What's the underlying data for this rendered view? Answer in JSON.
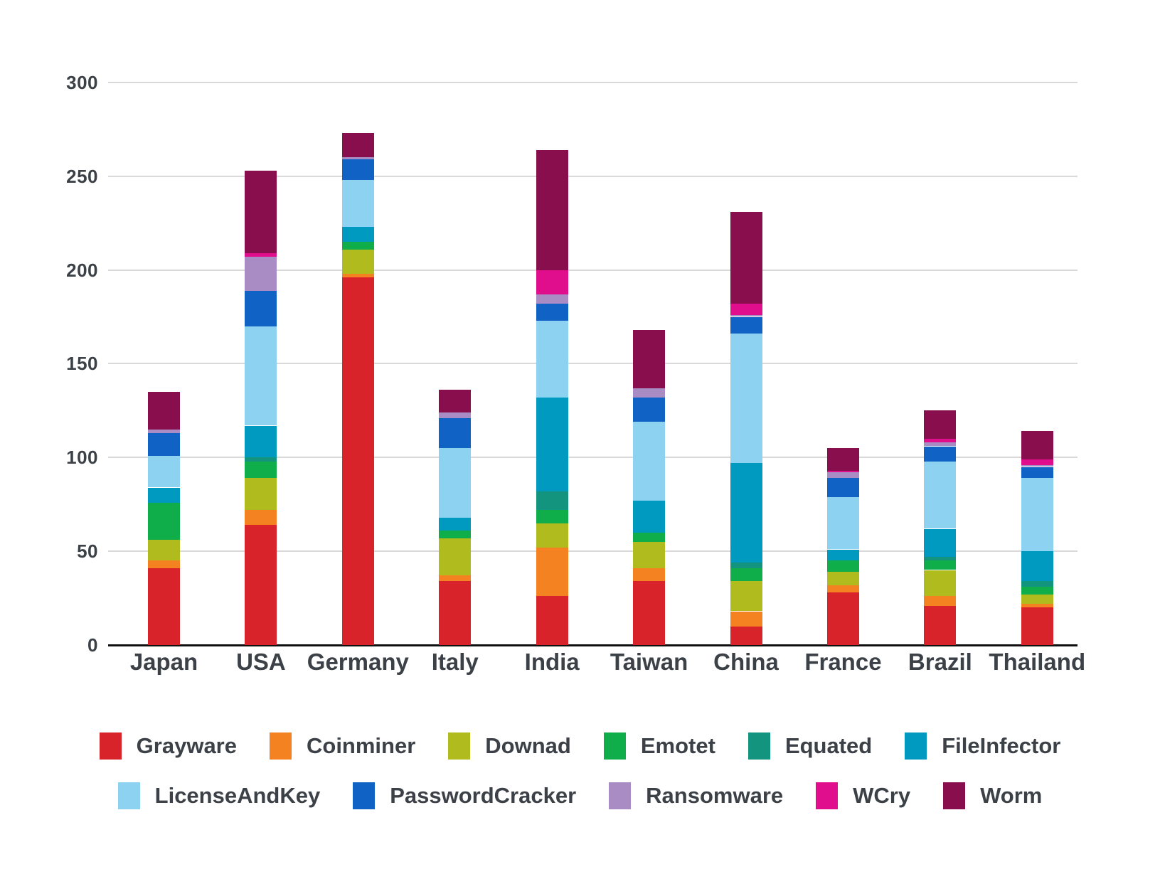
{
  "chart_data": {
    "type": "bar",
    "stacked": true,
    "title": "",
    "xlabel": "",
    "ylabel": "",
    "ylim": [
      0,
      300
    ],
    "yticks": [
      0,
      50,
      100,
      150,
      200,
      250,
      300
    ],
    "grid": "horizontal",
    "legend_position": "bottom",
    "categories": [
      "Japan",
      "USA",
      "Germany",
      "Italy",
      "India",
      "Taiwan",
      "China",
      "France",
      "Brazil",
      "Thailand"
    ],
    "series": [
      {
        "name": "Grayware",
        "color": "#d8232a",
        "values": [
          41,
          64,
          196,
          34,
          26,
          34,
          10,
          28,
          21,
          20
        ]
      },
      {
        "name": "Coinminer",
        "color": "#f58220",
        "values": [
          4,
          8,
          2,
          3,
          26,
          7,
          8,
          4,
          5,
          2
        ]
      },
      {
        "name": "Downad",
        "color": "#b0bb1e",
        "values": [
          11,
          17,
          13,
          20,
          13,
          14,
          16,
          7,
          14,
          5
        ]
      },
      {
        "name": "Emotet",
        "color": "#0fae4b",
        "values": [
          20,
          9,
          4,
          4,
          7,
          5,
          7,
          6,
          5,
          4
        ]
      },
      {
        "name": "Equated",
        "color": "#12947f",
        "values": [
          0,
          2,
          0,
          0,
          10,
          0,
          3,
          0,
          2,
          3
        ]
      },
      {
        "name": "FileInfector",
        "color": "#0099c0",
        "values": [
          8,
          17,
          8,
          7,
          50,
          17,
          53,
          6,
          15,
          16
        ]
      },
      {
        "name": "LicenseAndKey",
        "color": "#8dd3f1",
        "values": [
          17,
          53,
          25,
          37,
          41,
          42,
          69,
          28,
          36,
          39
        ]
      },
      {
        "name": "PasswordCracker",
        "color": "#1063c4",
        "values": [
          12,
          19,
          11,
          16,
          9,
          13,
          9,
          10,
          8,
          6
        ]
      },
      {
        "name": "Ransomware",
        "color": "#a88cc3",
        "values": [
          2,
          18,
          1,
          3,
          5,
          5,
          1,
          3,
          2,
          1
        ]
      },
      {
        "name": "WCry",
        "color": "#e00d8c",
        "values": [
          0,
          2,
          0,
          0,
          13,
          0,
          6,
          1,
          2,
          3
        ]
      },
      {
        "name": "Worm",
        "color": "#890e4e",
        "values": [
          20,
          44,
          13,
          12,
          64,
          31,
          49,
          12,
          15,
          15
        ]
      }
    ],
    "legend_rows": [
      [
        "Grayware",
        "Coinminer",
        "Downad",
        "Emotet",
        "Equated",
        "FileInfector"
      ],
      [
        "LicenseAndKey",
        "PasswordCracker",
        "Ransomware",
        "WCry",
        "Worm"
      ]
    ]
  },
  "colors": {
    "background": "#ffffff",
    "axis_text": "#3b4147",
    "gridline": "#d9d9d9",
    "baseline": "#101010"
  }
}
